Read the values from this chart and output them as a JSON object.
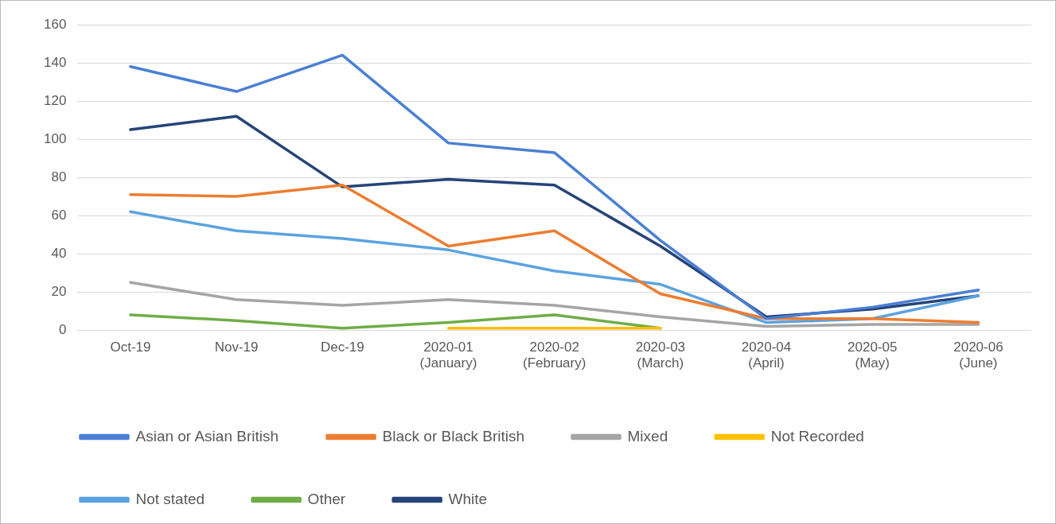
{
  "chart_data": {
    "type": "line",
    "categories": [
      "Oct-19",
      "Nov-19",
      "Dec-19",
      "2020-01\n(January)",
      "2020-02\n(February)",
      "2020-03\n(March)",
      "2020-04\n(April)",
      "2020-05\n(May)",
      "2020-06\n(June)"
    ],
    "series": [
      {
        "name": "Asian or Asian British",
        "color": "#4a7fd4",
        "values": [
          138,
          125,
          144,
          98,
          93,
          47,
          6,
          12,
          21
        ]
      },
      {
        "name": "Black or Black British",
        "color": "#ed7d31",
        "values": [
          71,
          70,
          76,
          44,
          52,
          19,
          6,
          6,
          4
        ]
      },
      {
        "name": "Mixed",
        "color": "#a5a5a5",
        "values": [
          25,
          16,
          13,
          16,
          13,
          7,
          2,
          3,
          3
        ]
      },
      {
        "name": "Not Recorded",
        "color": "#ffc000",
        "values": [
          null,
          null,
          null,
          1,
          1,
          1,
          null,
          null,
          null
        ]
      },
      {
        "name": "Not stated",
        "color": "#5ba3e0",
        "values": [
          62,
          52,
          48,
          42,
          31,
          24,
          4,
          6,
          18
        ]
      },
      {
        "name": "Other",
        "color": "#70ad47",
        "values": [
          8,
          5,
          1,
          4,
          8,
          1,
          null,
          null,
          null
        ]
      },
      {
        "name": "White",
        "color": "#264478",
        "values": [
          105,
          112,
          75,
          79,
          76,
          44,
          7,
          11,
          18
        ]
      }
    ],
    "ylim": [
      0,
      160
    ],
    "yticks": [
      0,
      20,
      40,
      60,
      80,
      100,
      120,
      140,
      160
    ],
    "grid": "y",
    "legend": "bottom",
    "marker": "none",
    "line_style": "solid"
  }
}
